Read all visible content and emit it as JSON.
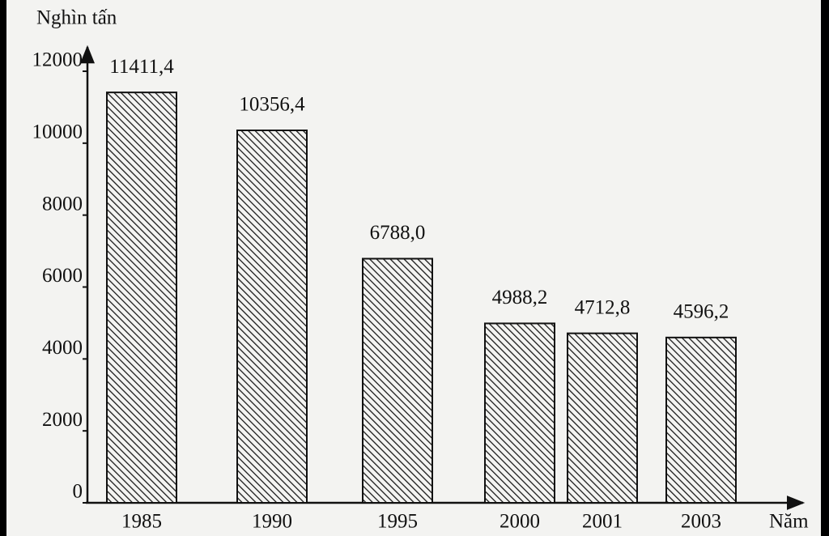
{
  "chart_data": {
    "type": "bar",
    "y_label": "Nghìn tấn",
    "x_label": "Năm",
    "categories": [
      "1985",
      "1990",
      "1995",
      "2000",
      "2001",
      "2003"
    ],
    "values": [
      11411.4,
      10356.4,
      6788.0,
      4988.2,
      4712.8,
      4596.2
    ],
    "value_labels": [
      "11411,4",
      "10356,4",
      "6788,0",
      "4988,2",
      "4712,8",
      "4596,2"
    ],
    "ylim": [
      0,
      12000
    ],
    "yticks": [
      0,
      2000,
      4000,
      6000,
      8000,
      10000,
      12000
    ],
    "color": "#111111",
    "grid": false
  }
}
